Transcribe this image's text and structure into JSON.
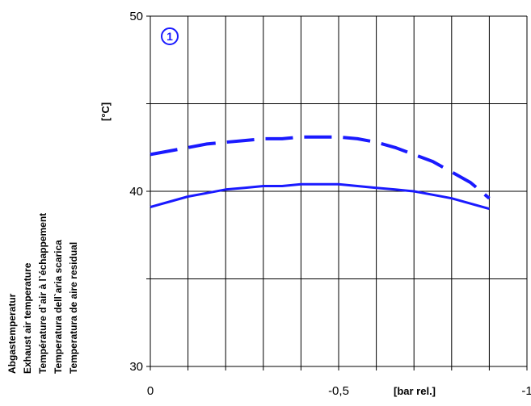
{
  "chart_data": {
    "type": "line",
    "badge": "1",
    "x_unit": "[bar rel.]",
    "y_unit": "[°C]",
    "y_label_lines": [
      "Abgastemperatur",
      "Exhaust air temperature",
      "Température d`air à l`échappement",
      "Temperatura dell`aria scarica",
      "Temperatura de aire residual"
    ],
    "xlim": [
      0,
      -1
    ],
    "ylim": [
      30,
      50
    ],
    "x_ticks": [
      {
        "value": 0,
        "label": "0"
      },
      {
        "value": -0.5,
        "label": "-0,5"
      },
      {
        "value": -1,
        "label": "-1"
      }
    ],
    "y_ticks": [
      {
        "value": 30,
        "label": "30"
      },
      {
        "value": 40,
        "label": "40"
      },
      {
        "value": 50,
        "label": "50"
      }
    ],
    "grid": true,
    "line_color": "#1a1aff",
    "series": [
      {
        "style": "dashed",
        "x": [
          0,
          -0.05,
          -0.1,
          -0.15,
          -0.2,
          -0.25,
          -0.3,
          -0.35,
          -0.4,
          -0.45,
          -0.5,
          -0.55,
          -0.6,
          -0.65,
          -0.7,
          -0.75,
          -0.8,
          -0.85,
          -0.9
        ],
        "y": [
          42.1,
          42.3,
          42.5,
          42.7,
          42.8,
          42.9,
          43.0,
          43.0,
          43.1,
          43.1,
          43.1,
          43.0,
          42.8,
          42.5,
          42.1,
          41.7,
          41.1,
          40.5,
          39.6
        ]
      },
      {
        "style": "solid",
        "x": [
          0,
          -0.05,
          -0.1,
          -0.15,
          -0.2,
          -0.25,
          -0.3,
          -0.35,
          -0.4,
          -0.45,
          -0.5,
          -0.55,
          -0.6,
          -0.65,
          -0.7,
          -0.75,
          -0.8,
          -0.85,
          -0.9
        ],
        "y": [
          39.1,
          39.4,
          39.7,
          39.9,
          40.1,
          40.2,
          40.3,
          40.3,
          40.4,
          40.4,
          40.4,
          40.3,
          40.2,
          40.1,
          40.0,
          39.8,
          39.6,
          39.3,
          39.0
        ]
      }
    ]
  }
}
